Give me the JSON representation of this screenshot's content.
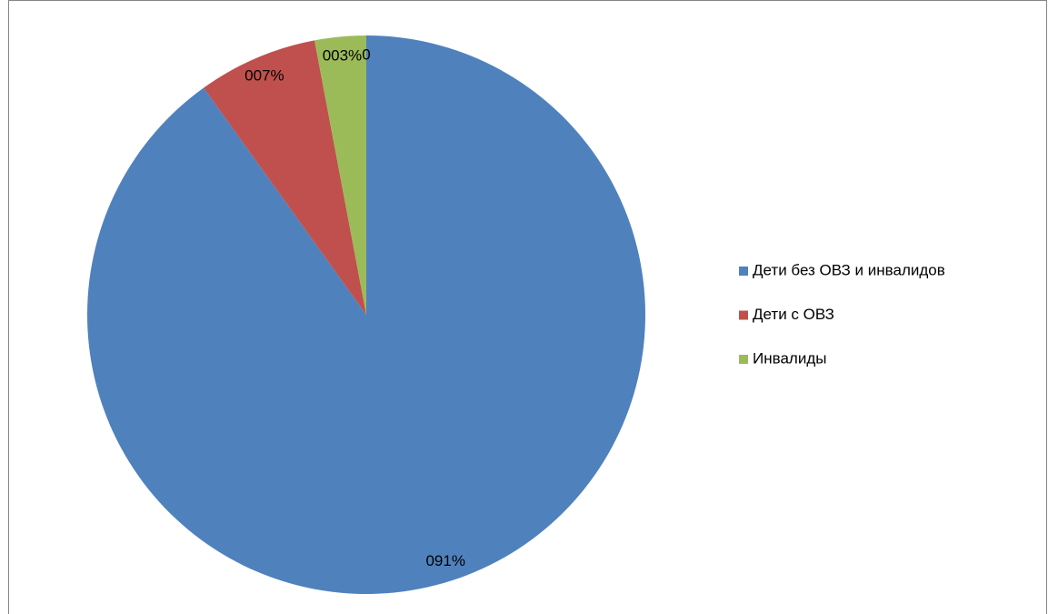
{
  "chart_data": {
    "type": "pie",
    "categories": [
      "Дети без ОВЗ и инвалидов",
      "Дети с ОВЗ",
      "Инвалиды",
      null
    ],
    "values": [
      91,
      7,
      3,
      0
    ],
    "value_labels": [
      "091%",
      "007%",
      "003%",
      "0"
    ],
    "colors": [
      "#4f81bd",
      "#c0504d",
      "#9bbb59",
      "#8064a2"
    ],
    "legend": "right"
  }
}
